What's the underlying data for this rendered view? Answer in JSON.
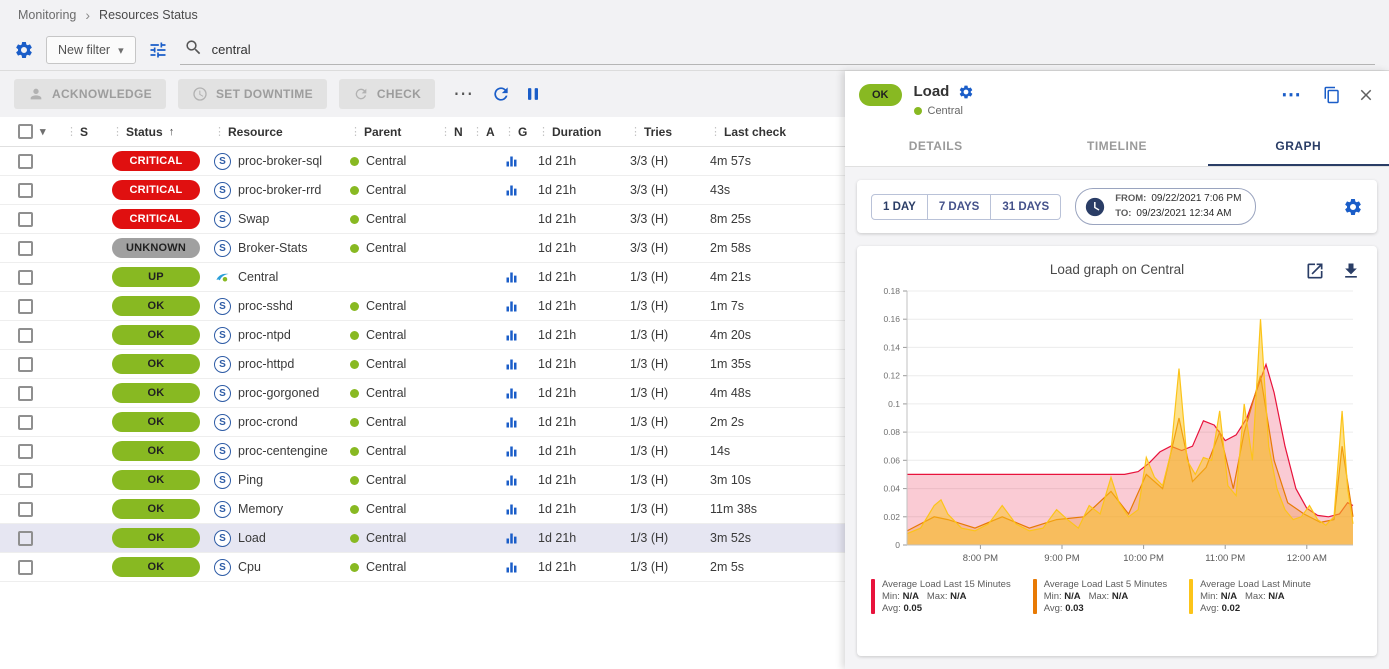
{
  "colors": {
    "critical": "#e01010",
    "unknown": "#a0a0a0",
    "success": "#88b922",
    "accent_blue": "#1a5dc8",
    "navy": "#2a3d66",
    "selected_row": "#e6e6f2"
  },
  "breadcrumb": {
    "items": [
      "Monitoring",
      "Resources Status"
    ],
    "separator": "›"
  },
  "filter_bar": {
    "new_filter_label": "New filter",
    "search_value": "central"
  },
  "toolbar": {
    "acknowledge_label": "ACKNOWLEDGE",
    "set_downtime_label": "SET DOWNTIME",
    "check_label": "CHECK"
  },
  "table": {
    "sort_column": "Status",
    "columns": [
      {
        "key": "select",
        "label": ""
      },
      {
        "key": "s",
        "label": "S"
      },
      {
        "key": "status",
        "label": "Status"
      },
      {
        "key": "resource",
        "label": "Resource"
      },
      {
        "key": "parent",
        "label": "Parent"
      },
      {
        "key": "n",
        "label": "N"
      },
      {
        "key": "a",
        "label": "A"
      },
      {
        "key": "g",
        "label": "G"
      },
      {
        "key": "duration",
        "label": "Duration"
      },
      {
        "key": "tries",
        "label": "Tries"
      },
      {
        "key": "last_check",
        "label": "Last check"
      }
    ],
    "rows": [
      {
        "severity": "critical",
        "status": "CRITICAL",
        "type": "service",
        "resource": "proc-broker-sql",
        "parent": "Central",
        "has_graph": true,
        "duration": "1d 21h",
        "tries": "3/3 (H)",
        "last_check": "4m 57s",
        "selected": false
      },
      {
        "severity": "critical",
        "status": "CRITICAL",
        "type": "service",
        "resource": "proc-broker-rrd",
        "parent": "Central",
        "has_graph": true,
        "duration": "1d 21h",
        "tries": "3/3 (H)",
        "last_check": "43s",
        "selected": false
      },
      {
        "severity": "critical",
        "status": "CRITICAL",
        "type": "service",
        "resource": "Swap",
        "parent": "Central",
        "has_graph": false,
        "duration": "1d 21h",
        "tries": "3/3 (H)",
        "last_check": "8m 25s",
        "selected": false
      },
      {
        "severity": "unknown",
        "status": "UNKNOWN",
        "type": "service",
        "resource": "Broker-Stats",
        "parent": "Central",
        "has_graph": false,
        "duration": "1d 21h",
        "tries": "3/3 (H)",
        "last_check": "2m 58s",
        "selected": false
      },
      {
        "severity": "up",
        "status": "UP",
        "type": "host",
        "resource": "Central",
        "parent": "",
        "has_graph": true,
        "duration": "1d 21h",
        "tries": "1/3 (H)",
        "last_check": "4m 21s",
        "selected": false
      },
      {
        "severity": "ok",
        "status": "OK",
        "type": "service",
        "resource": "proc-sshd",
        "parent": "Central",
        "has_graph": true,
        "duration": "1d 21h",
        "tries": "1/3 (H)",
        "last_check": "1m 7s",
        "selected": false
      },
      {
        "severity": "ok",
        "status": "OK",
        "type": "service",
        "resource": "proc-ntpd",
        "parent": "Central",
        "has_graph": true,
        "duration": "1d 21h",
        "tries": "1/3 (H)",
        "last_check": "4m 20s",
        "selected": false
      },
      {
        "severity": "ok",
        "status": "OK",
        "type": "service",
        "resource": "proc-httpd",
        "parent": "Central",
        "has_graph": true,
        "duration": "1d 21h",
        "tries": "1/3 (H)",
        "last_check": "1m 35s",
        "selected": false
      },
      {
        "severity": "ok",
        "status": "OK",
        "type": "service",
        "resource": "proc-gorgoned",
        "parent": "Central",
        "has_graph": true,
        "duration": "1d 21h",
        "tries": "1/3 (H)",
        "last_check": "4m 48s",
        "selected": false
      },
      {
        "severity": "ok",
        "status": "OK",
        "type": "service",
        "resource": "proc-crond",
        "parent": "Central",
        "has_graph": true,
        "duration": "1d 21h",
        "tries": "1/3 (H)",
        "last_check": "2m 2s",
        "selected": false
      },
      {
        "severity": "ok",
        "status": "OK",
        "type": "service",
        "resource": "proc-centengine",
        "parent": "Central",
        "has_graph": true,
        "duration": "1d 21h",
        "tries": "1/3 (H)",
        "last_check": "14s",
        "selected": false
      },
      {
        "severity": "ok",
        "status": "OK",
        "type": "service",
        "resource": "Ping",
        "parent": "Central",
        "has_graph": true,
        "duration": "1d 21h",
        "tries": "1/3 (H)",
        "last_check": "3m 10s",
        "selected": false
      },
      {
        "severity": "ok",
        "status": "OK",
        "type": "service",
        "resource": "Memory",
        "parent": "Central",
        "has_graph": true,
        "duration": "1d 21h",
        "tries": "1/3 (H)",
        "last_check": "11m 38s",
        "selected": false
      },
      {
        "severity": "ok",
        "status": "OK",
        "type": "service",
        "resource": "Load",
        "parent": "Central",
        "has_graph": true,
        "duration": "1d 21h",
        "tries": "1/3 (H)",
        "last_check": "3m 52s",
        "selected": true
      },
      {
        "severity": "ok",
        "status": "OK",
        "type": "service",
        "resource": "Cpu",
        "parent": "Central",
        "has_graph": true,
        "duration": "1d 21h",
        "tries": "1/3 (H)",
        "last_check": "2m 5s",
        "selected": false
      }
    ]
  },
  "panel": {
    "status": "OK",
    "title": "Load",
    "subtitle": "Central",
    "tabs": [
      {
        "label": "DETAILS",
        "active": false
      },
      {
        "label": "TIMELINE",
        "active": false
      },
      {
        "label": "GRAPH",
        "active": true
      }
    ],
    "time_buttons": [
      {
        "label": "1 DAY",
        "active": true
      },
      {
        "label": "7 DAYS",
        "active": false
      },
      {
        "label": "31 DAYS",
        "active": false
      }
    ],
    "period": {
      "from_label": "FROM:",
      "from_value": "09/22/2021 7:06 PM",
      "to_label": "TO:",
      "to_value": "09/23/2021 12:34 AM"
    }
  },
  "chart_data": {
    "type": "area",
    "title": "Load graph on Central",
    "ylim": [
      0,
      0.18
    ],
    "y_ticks": [
      0,
      0.02,
      0.04,
      0.06,
      0.08,
      0.1,
      0.12,
      0.14,
      0.16,
      0.18
    ],
    "x_axis": {
      "start_minutes": 0,
      "end_minutes": 328,
      "ticks": [
        {
          "minutes": 54,
          "label": "8:00 PM"
        },
        {
          "minutes": 114,
          "label": "9:00 PM"
        },
        {
          "minutes": 174,
          "label": "10:00 PM"
        },
        {
          "minutes": 234,
          "label": "11:00 PM"
        },
        {
          "minutes": 294,
          "label": "12:00 AM"
        }
      ]
    },
    "series": [
      {
        "name": "Average Load Last 15 Minutes",
        "color": "#e8133c",
        "fill_opacity": 0.22,
        "min": "N/A",
        "max": "N/A",
        "avg": "0.05",
        "points": [
          [
            0,
            0.05
          ],
          [
            20,
            0.05
          ],
          [
            40,
            0.05
          ],
          [
            60,
            0.05
          ],
          [
            80,
            0.05
          ],
          [
            100,
            0.05
          ],
          [
            120,
            0.05
          ],
          [
            140,
            0.05
          ],
          [
            160,
            0.05
          ],
          [
            170,
            0.052
          ],
          [
            178,
            0.058
          ],
          [
            186,
            0.066
          ],
          [
            194,
            0.07
          ],
          [
            202,
            0.067
          ],
          [
            210,
            0.07
          ],
          [
            218,
            0.088
          ],
          [
            226,
            0.085
          ],
          [
            234,
            0.074
          ],
          [
            242,
            0.078
          ],
          [
            250,
            0.09
          ],
          [
            258,
            0.112
          ],
          [
            264,
            0.128
          ],
          [
            270,
            0.108
          ],
          [
            278,
            0.07
          ],
          [
            286,
            0.04
          ],
          [
            294,
            0.026
          ],
          [
            302,
            0.021
          ],
          [
            310,
            0.02
          ],
          [
            318,
            0.022
          ],
          [
            324,
            0.03
          ],
          [
            328,
            0.028
          ]
        ]
      },
      {
        "name": "Average Load Last 5 Minutes",
        "color": "#e87a04",
        "fill_opacity": 0.25,
        "min": "N/A",
        "max": "N/A",
        "avg": "0.03",
        "points": [
          [
            0,
            0.01
          ],
          [
            20,
            0.02
          ],
          [
            30,
            0.018
          ],
          [
            50,
            0.012
          ],
          [
            70,
            0.02
          ],
          [
            90,
            0.012
          ],
          [
            110,
            0.018
          ],
          [
            130,
            0.02
          ],
          [
            150,
            0.038
          ],
          [
            163,
            0.022
          ],
          [
            176,
            0.05
          ],
          [
            188,
            0.04
          ],
          [
            200,
            0.09
          ],
          [
            210,
            0.045
          ],
          [
            220,
            0.055
          ],
          [
            230,
            0.08
          ],
          [
            240,
            0.04
          ],
          [
            248,
            0.08
          ],
          [
            260,
            0.12
          ],
          [
            270,
            0.06
          ],
          [
            280,
            0.03
          ],
          [
            292,
            0.022
          ],
          [
            304,
            0.016
          ],
          [
            314,
            0.018
          ],
          [
            320,
            0.07
          ],
          [
            328,
            0.02
          ]
        ]
      },
      {
        "name": "Average Load Last Minute",
        "color": "#fcc419",
        "fill_opacity": 0.5,
        "min": "N/A",
        "max": "N/A",
        "avg": "0.02",
        "points": [
          [
            0,
            0.008
          ],
          [
            10,
            0.012
          ],
          [
            20,
            0.028
          ],
          [
            25,
            0.032
          ],
          [
            30,
            0.022
          ],
          [
            40,
            0.012
          ],
          [
            50,
            0.01
          ],
          [
            60,
            0.015
          ],
          [
            70,
            0.028
          ],
          [
            80,
            0.015
          ],
          [
            90,
            0.01
          ],
          [
            100,
            0.012
          ],
          [
            110,
            0.025
          ],
          [
            118,
            0.018
          ],
          [
            126,
            0.012
          ],
          [
            134,
            0.028
          ],
          [
            142,
            0.022
          ],
          [
            150,
            0.048
          ],
          [
            156,
            0.03
          ],
          [
            163,
            0.02
          ],
          [
            170,
            0.025
          ],
          [
            176,
            0.062
          ],
          [
            182,
            0.048
          ],
          [
            188,
            0.042
          ],
          [
            194,
            0.065
          ],
          [
            200,
            0.125
          ],
          [
            206,
            0.06
          ],
          [
            212,
            0.05
          ],
          [
            218,
            0.062
          ],
          [
            224,
            0.06
          ],
          [
            230,
            0.095
          ],
          [
            236,
            0.042
          ],
          [
            242,
            0.035
          ],
          [
            248,
            0.1
          ],
          [
            254,
            0.06
          ],
          [
            260,
            0.16
          ],
          [
            266,
            0.07
          ],
          [
            272,
            0.04
          ],
          [
            278,
            0.025
          ],
          [
            284,
            0.018
          ],
          [
            290,
            0.02
          ],
          [
            296,
            0.028
          ],
          [
            302,
            0.018
          ],
          [
            308,
            0.014
          ],
          [
            314,
            0.02
          ],
          [
            320,
            0.095
          ],
          [
            324,
            0.04
          ],
          [
            328,
            0.015
          ]
        ]
      }
    ]
  }
}
